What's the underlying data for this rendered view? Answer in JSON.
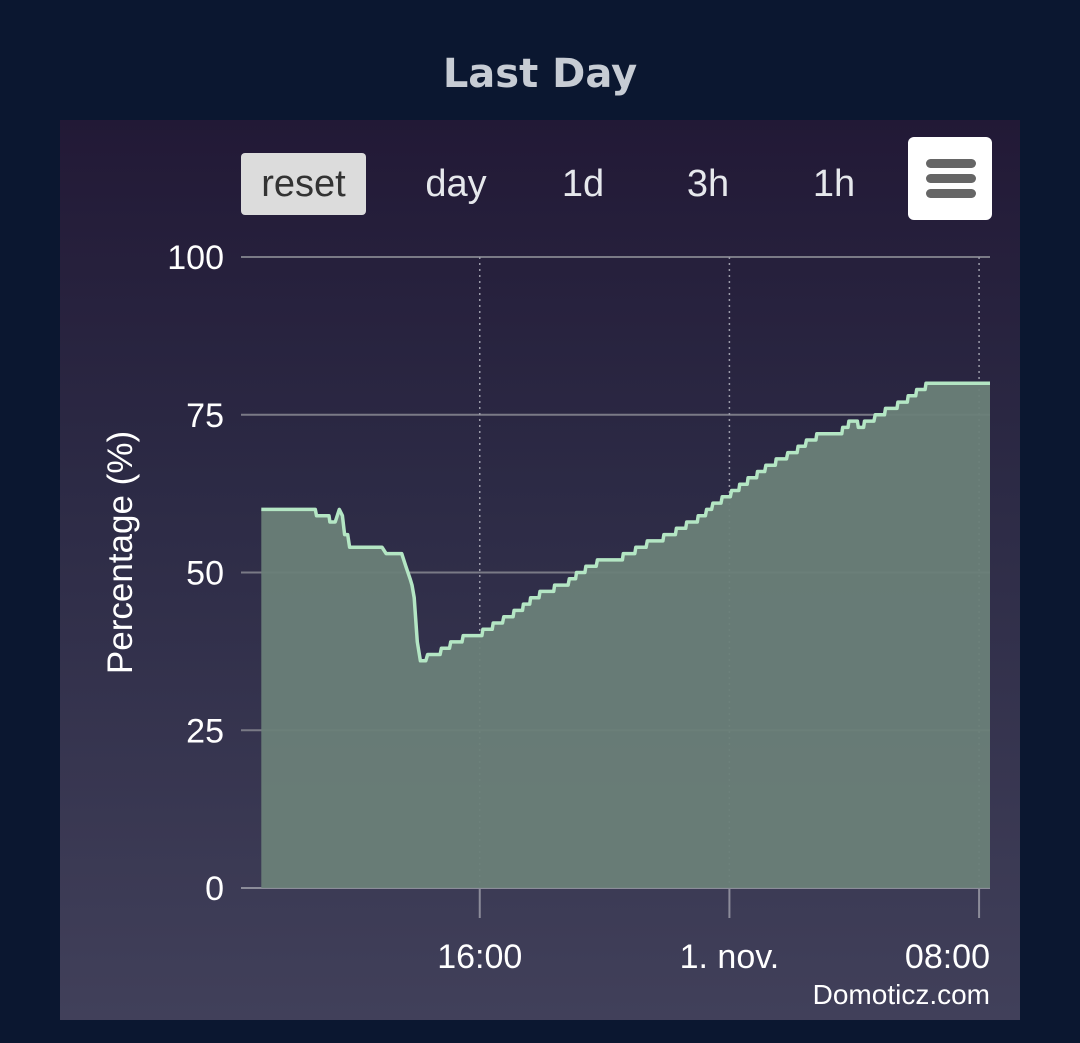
{
  "header": {
    "title": "Last Day"
  },
  "toolbar": {
    "buttons": [
      {
        "label": "reset",
        "active": true
      },
      {
        "label": "day",
        "active": false
      },
      {
        "label": "1d",
        "active": false
      },
      {
        "label": "3h",
        "active": false
      },
      {
        "label": "1h",
        "active": false
      }
    ],
    "menu_icon": "hamburger-menu-icon"
  },
  "credit": "Domoticz.com",
  "colors": {
    "page_background": "#0b1730",
    "series_line": "#b4e6c4",
    "series_fill": "#6a7f78"
  },
  "chart_data": {
    "type": "area",
    "title": "Last Day",
    "ylabel": "Percentage (%)",
    "xlabel": "",
    "ylim": [
      0,
      100
    ],
    "yticks": [
      0,
      25,
      50,
      75,
      100
    ],
    "xticks": [
      {
        "t": 16.0,
        "label": "16:00"
      },
      {
        "t": 24.0,
        "label": "1. nov."
      },
      {
        "t": 32.0,
        "label": "08:00"
      }
    ],
    "xlim": [
      8.35,
      32.35
    ],
    "x_unit": "hours since 31 Oct 00:00",
    "grid": {
      "horizontal": true,
      "vertical": "dotted"
    },
    "legend": "none",
    "series": [
      {
        "points": [
          [
            9.0,
            60
          ],
          [
            10.73,
            60
          ],
          [
            10.77,
            59
          ],
          [
            11.17,
            59
          ],
          [
            11.2,
            58
          ],
          [
            11.37,
            58
          ],
          [
            11.5,
            60
          ],
          [
            11.6,
            59
          ],
          [
            11.67,
            56
          ],
          [
            11.77,
            56
          ],
          [
            11.83,
            54
          ],
          [
            12.87,
            54
          ],
          [
            13.0,
            53
          ],
          [
            13.5,
            53
          ],
          [
            13.63,
            51
          ],
          [
            13.77,
            49
          ],
          [
            13.83,
            48
          ],
          [
            13.9,
            46
          ],
          [
            14.0,
            39
          ],
          [
            14.1,
            36
          ],
          [
            14.27,
            36
          ],
          [
            14.33,
            37
          ],
          [
            14.73,
            37
          ],
          [
            14.77,
            38
          ],
          [
            15.03,
            38
          ],
          [
            15.07,
            39
          ],
          [
            15.43,
            39
          ],
          [
            15.47,
            40
          ],
          [
            16.07,
            40
          ],
          [
            16.1,
            41
          ],
          [
            16.4,
            41
          ],
          [
            16.43,
            42
          ],
          [
            16.73,
            42
          ],
          [
            16.77,
            43
          ],
          [
            17.07,
            43
          ],
          [
            17.1,
            44
          ],
          [
            17.37,
            44
          ],
          [
            17.4,
            45
          ],
          [
            17.6,
            45
          ],
          [
            17.63,
            46
          ],
          [
            17.9,
            46
          ],
          [
            17.93,
            47
          ],
          [
            18.37,
            47
          ],
          [
            18.4,
            48
          ],
          [
            18.83,
            48
          ],
          [
            18.87,
            49
          ],
          [
            19.07,
            49
          ],
          [
            19.1,
            50
          ],
          [
            19.37,
            50
          ],
          [
            19.4,
            51
          ],
          [
            19.73,
            51
          ],
          [
            19.77,
            52
          ],
          [
            20.57,
            52
          ],
          [
            20.6,
            53
          ],
          [
            20.97,
            53
          ],
          [
            21.0,
            54
          ],
          [
            21.33,
            54
          ],
          [
            21.37,
            55
          ],
          [
            21.87,
            55
          ],
          [
            21.9,
            56
          ],
          [
            22.27,
            56
          ],
          [
            22.3,
            57
          ],
          [
            22.6,
            57
          ],
          [
            22.63,
            58
          ],
          [
            22.97,
            58
          ],
          [
            23.0,
            59
          ],
          [
            23.23,
            59
          ],
          [
            23.27,
            60
          ],
          [
            23.43,
            60
          ],
          [
            23.47,
            61
          ],
          [
            23.73,
            61
          ],
          [
            23.77,
            62
          ],
          [
            24.03,
            62
          ],
          [
            24.07,
            63
          ],
          [
            24.3,
            63
          ],
          [
            24.33,
            64
          ],
          [
            24.57,
            64
          ],
          [
            24.6,
            65
          ],
          [
            24.87,
            65
          ],
          [
            24.9,
            66
          ],
          [
            25.13,
            66
          ],
          [
            25.17,
            67
          ],
          [
            25.47,
            67
          ],
          [
            25.5,
            68
          ],
          [
            25.83,
            68
          ],
          [
            25.87,
            69
          ],
          [
            26.17,
            69
          ],
          [
            26.2,
            70
          ],
          [
            26.43,
            70
          ],
          [
            26.47,
            71
          ],
          [
            26.77,
            71
          ],
          [
            26.8,
            72
          ],
          [
            27.6,
            72
          ],
          [
            27.63,
            73
          ],
          [
            27.8,
            73
          ],
          [
            27.83,
            74
          ],
          [
            28.1,
            74
          ],
          [
            28.13,
            73
          ],
          [
            28.3,
            73
          ],
          [
            28.33,
            74
          ],
          [
            28.63,
            74
          ],
          [
            28.67,
            75
          ],
          [
            28.97,
            75
          ],
          [
            29.0,
            76
          ],
          [
            29.37,
            76
          ],
          [
            29.4,
            77
          ],
          [
            29.7,
            77
          ],
          [
            29.73,
            78
          ],
          [
            29.97,
            78
          ],
          [
            30.0,
            79
          ],
          [
            30.27,
            79
          ],
          [
            30.3,
            80
          ],
          [
            32.35,
            80
          ]
        ]
      }
    ]
  }
}
